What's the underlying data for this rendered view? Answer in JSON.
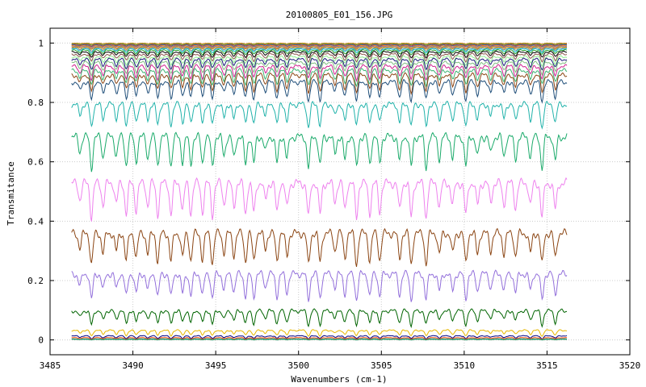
{
  "chart_data": {
    "type": "line",
    "title": "20100805_E01_156.JPG",
    "xlabel": "Wavenumbers (cm-1)",
    "ylabel": "Transmitance",
    "xlim": [
      3485,
      3520
    ],
    "ylim": [
      -0.05,
      1.05
    ],
    "x_ticks": [
      "3485",
      "3490",
      "3495",
      "3500",
      "3505",
      "3510",
      "3515",
      "3520"
    ],
    "y_ticks": [
      "0",
      "0.2",
      "0.4",
      "0.6",
      "0.8",
      "1"
    ],
    "x_tick_values": [
      3485,
      3490,
      3495,
      3500,
      3505,
      3510,
      3515,
      3520
    ],
    "y_tick_values": [
      0,
      0.2,
      0.4,
      0.6,
      0.8,
      1
    ],
    "grid": true,
    "legend": "none",
    "x_range": [
      3486.3,
      3516.2
    ],
    "absorption_lines": [
      3486.8,
      3487.5,
      3488.2,
      3489.0,
      3489.6,
      3490.2,
      3490.9,
      3491.5,
      3492.3,
      3493.0,
      3493.5,
      3494.2,
      3494.8,
      3495.5,
      3496.1,
      3496.8,
      3497.3,
      3498.0,
      3498.7,
      3499.3,
      3500.6,
      3501.3,
      3502.2,
      3502.8,
      3503.5,
      3504.3,
      3504.9,
      3506.1,
      3506.8,
      3507.7,
      3508.5,
      3509.3,
      3510.1,
      3510.8,
      3511.6,
      3512.4,
      3513.1,
      3514.0,
      3514.7,
      3515.5
    ],
    "series": [
      {
        "baseline": 1.0,
        "depth": 0.003,
        "color": "#e07b00"
      },
      {
        "baseline": 0.998,
        "depth": 0.004,
        "color": "#3cb44b"
      },
      {
        "baseline": 0.996,
        "depth": 0.005,
        "color": "#d62728"
      },
      {
        "baseline": 0.994,
        "depth": 0.006,
        "color": "#1f77b4"
      },
      {
        "baseline": 0.992,
        "depth": 0.007,
        "color": "#ff7f0e"
      },
      {
        "baseline": 0.99,
        "depth": 0.008,
        "color": "#9467bd"
      },
      {
        "baseline": 0.988,
        "depth": 0.009,
        "color": "#c8a000"
      },
      {
        "baseline": 0.985,
        "depth": 0.011,
        "color": "#808080"
      },
      {
        "baseline": 0.982,
        "depth": 0.013,
        "color": "#17becf"
      },
      {
        "baseline": 0.978,
        "depth": 0.016,
        "color": "#2ca02c"
      },
      {
        "baseline": 0.973,
        "depth": 0.02,
        "color": "#000000"
      },
      {
        "baseline": 0.966,
        "depth": 0.025,
        "color": "#8c564b"
      },
      {
        "baseline": 0.958,
        "depth": 0.03,
        "color": "#90ee90"
      },
      {
        "baseline": 0.95,
        "depth": 0.035,
        "color": "#1a1a7a"
      },
      {
        "baseline": 0.94,
        "depth": 0.04,
        "color": "#7fbf7f"
      },
      {
        "baseline": 0.928,
        "depth": 0.046,
        "color": "#d02090"
      },
      {
        "baseline": 0.915,
        "depth": 0.052,
        "color": "#3cb371"
      },
      {
        "baseline": 0.9,
        "depth": 0.058,
        "color": "#8b4513"
      },
      {
        "baseline": 0.878,
        "depth": 0.065,
        "color": "#1f4e79"
      },
      {
        "baseline": 0.805,
        "depth": 0.08,
        "color": "#20b2aa"
      },
      {
        "baseline": 0.7,
        "depth": 0.11,
        "color": "#1aaa6a"
      },
      {
        "baseline": 0.545,
        "depth": 0.12,
        "color": "#ee82ee"
      },
      {
        "baseline": 0.375,
        "depth": 0.11,
        "color": "#8b4513"
      },
      {
        "baseline": 0.235,
        "depth": 0.09,
        "color": "#9370db"
      },
      {
        "baseline": 0.105,
        "depth": 0.05,
        "color": "#006400"
      },
      {
        "baseline": 0.035,
        "depth": 0.02,
        "color": "#e6b800"
      },
      {
        "baseline": 0.015,
        "depth": 0.01,
        "color": "#000080"
      },
      {
        "baseline": 0.008,
        "depth": 0.005,
        "color": "#ff4500"
      },
      {
        "baseline": 0.004,
        "depth": 0.003,
        "color": "#20b2aa"
      },
      {
        "baseline": 0.002,
        "depth": 0.002,
        "color": "#2e8b57"
      }
    ]
  }
}
